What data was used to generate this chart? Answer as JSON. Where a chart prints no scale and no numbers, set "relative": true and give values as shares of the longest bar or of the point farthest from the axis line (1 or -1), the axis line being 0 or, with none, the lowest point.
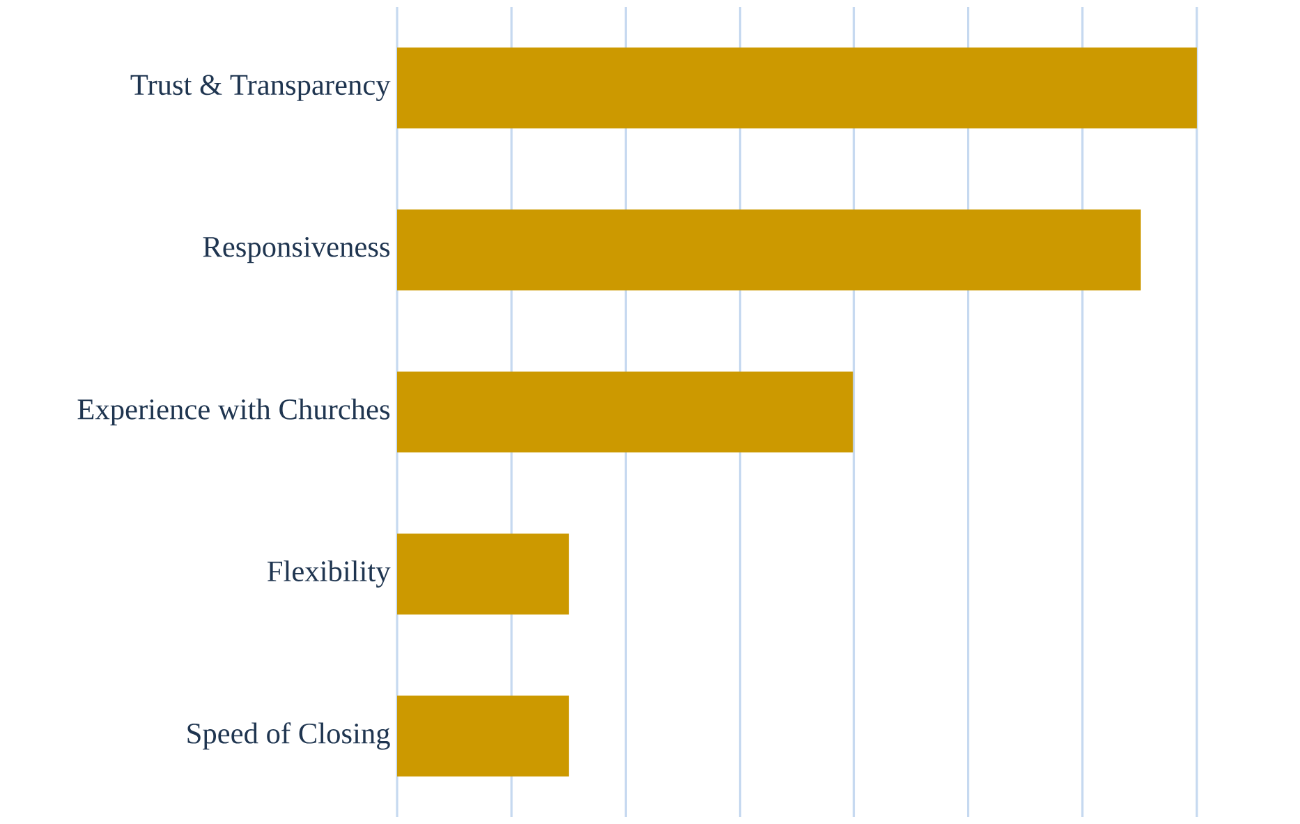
{
  "chart_data": {
    "type": "bar",
    "orientation": "horizontal",
    "relative": true,
    "color": "#cc9900",
    "categories": [
      "Trust & Transparency",
      "Responsiveness",
      "Experience with Churches",
      "Flexibility",
      "Speed of Closing"
    ],
    "values": [
      1,
      0.93,
      0.57,
      0.215,
      0.215
    ],
    "ref_lines": [
      {
        "axis": "x",
        "value": 0.143,
        "color": "#c6d9f0"
      },
      {
        "axis": "x",
        "value": 0.286,
        "color": "#c6d9f0"
      },
      {
        "axis": "x",
        "value": 0.429,
        "color": "#c6d9f0"
      },
      {
        "axis": "x",
        "value": 0.571,
        "color": "#c6d9f0"
      },
      {
        "axis": "x",
        "value": 0.714,
        "color": "#c6d9f0"
      },
      {
        "axis": "x",
        "value": 0.857,
        "color": "#c6d9f0"
      },
      {
        "axis": "x",
        "value": 1,
        "color": "#c6d9f0"
      }
    ]
  }
}
